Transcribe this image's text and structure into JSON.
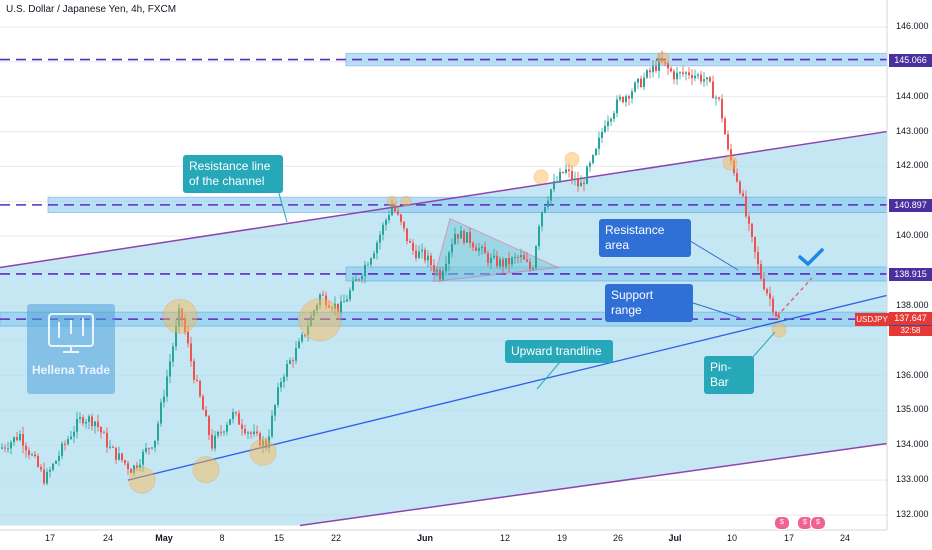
{
  "header": {
    "title": "U.S. Dollar / Japanese Yen, 4h, FXCM"
  },
  "colors": {
    "background": "#ffffff",
    "channel_fill": "#b2dfef",
    "zone_fill": "#81c8f0",
    "level_dash": "#5b2bc7",
    "channel_line": "#8e44ad",
    "trendline": "#2e5ee8",
    "candle_up": "#26a69a",
    "candle_down": "#ef5350",
    "marker": "#ffb74d",
    "current_price": "#e53935",
    "level_tag": "#4a2f9e",
    "check": "#1e88e5"
  },
  "chart_data": {
    "type": "candlestick",
    "symbol": "USDJPY",
    "timeframe": "4h",
    "source": "FXCM",
    "y_axis": {
      "ticks": [
        132.0,
        133.0,
        134.0,
        135.0,
        136.0,
        137.0,
        138.0,
        139.0,
        140.0,
        141.0,
        142.0,
        143.0,
        144.0,
        145.0,
        146.0
      ],
      "tick_labels": [
        "132.000",
        "133.000",
        "134.000",
        "135.000",
        "136.000",
        "",
        "138.000",
        "",
        "140.000",
        "",
        "142.000",
        "143.000",
        "144.000",
        "",
        "146.000"
      ],
      "range": [
        131.6,
        146.5
      ]
    },
    "x_axis": {
      "labels": [
        "17",
        "24",
        "May",
        "8",
        "15",
        "22",
        "Jun",
        "12",
        "19",
        "26",
        "Jul",
        "10",
        "17",
        "24"
      ],
      "bold": [
        "May",
        "Jun",
        "Jul"
      ]
    },
    "current_price": 137.647,
    "countdown": "32:58",
    "horizontal_levels": [
      145.066,
      140.897,
      138.915,
      137.619
    ],
    "price_path": [
      [
        0,
        133.9
      ],
      [
        20,
        134.3
      ],
      [
        45,
        133.0
      ],
      [
        70,
        134.3
      ],
      [
        82,
        134.8
      ],
      [
        95,
        134.7
      ],
      [
        110,
        133.9
      ],
      [
        132,
        133.3
      ],
      [
        155,
        134.2
      ],
      [
        180,
        137.9
      ],
      [
        195,
        135.9
      ],
      [
        212,
        134.0
      ],
      [
        232,
        134.9
      ],
      [
        252,
        134.3
      ],
      [
        266,
        134.0
      ],
      [
        282,
        136.0
      ],
      [
        300,
        136.9
      ],
      [
        320,
        138.3
      ],
      [
        340,
        137.9
      ],
      [
        360,
        138.9
      ],
      [
        375,
        139.7
      ],
      [
        392,
        140.9
      ],
      [
        400,
        140.4
      ],
      [
        412,
        139.6
      ],
      [
        425,
        139.4
      ],
      [
        440,
        138.9
      ],
      [
        455,
        140.1
      ],
      [
        470,
        139.9
      ],
      [
        490,
        139.3
      ],
      [
        505,
        139.2
      ],
      [
        520,
        139.4
      ],
      [
        532,
        139.0
      ],
      [
        540,
        140.6
      ],
      [
        550,
        141.3
      ],
      [
        565,
        141.9
      ],
      [
        580,
        141.4
      ],
      [
        595,
        142.3
      ],
      [
        605,
        143.3
      ],
      [
        620,
        143.9
      ],
      [
        640,
        144.4
      ],
      [
        660,
        145.0
      ],
      [
        675,
        144.6
      ],
      [
        690,
        144.7
      ],
      [
        705,
        144.5
      ],
      [
        720,
        143.8
      ],
      [
        728,
        142.4
      ],
      [
        740,
        141.4
      ],
      [
        748,
        140.3
      ],
      [
        760,
        138.9
      ],
      [
        770,
        138.2
      ],
      [
        779,
        137.6
      ]
    ],
    "series": [
      {
        "name": "Resistance line",
        "type": "line",
        "points": [
          [
            0,
            139.1
          ],
          [
            887,
            143.0
          ]
        ]
      },
      {
        "name": "Upward trandline",
        "type": "line",
        "points": [
          [
            128,
            133.0
          ],
          [
            887,
            138.3
          ]
        ]
      }
    ],
    "annotations": {
      "resistance_channel": "Resistance line of the channel",
      "resistance_area": "Resistance area",
      "support_range": "Support range",
      "upward_trendline": "Upward trandline",
      "pin_bar": "Pin-Bar"
    }
  },
  "logo": {
    "text": "Hellena Trade"
  },
  "overlays": {
    "symbol_tag": "USDJPY"
  }
}
